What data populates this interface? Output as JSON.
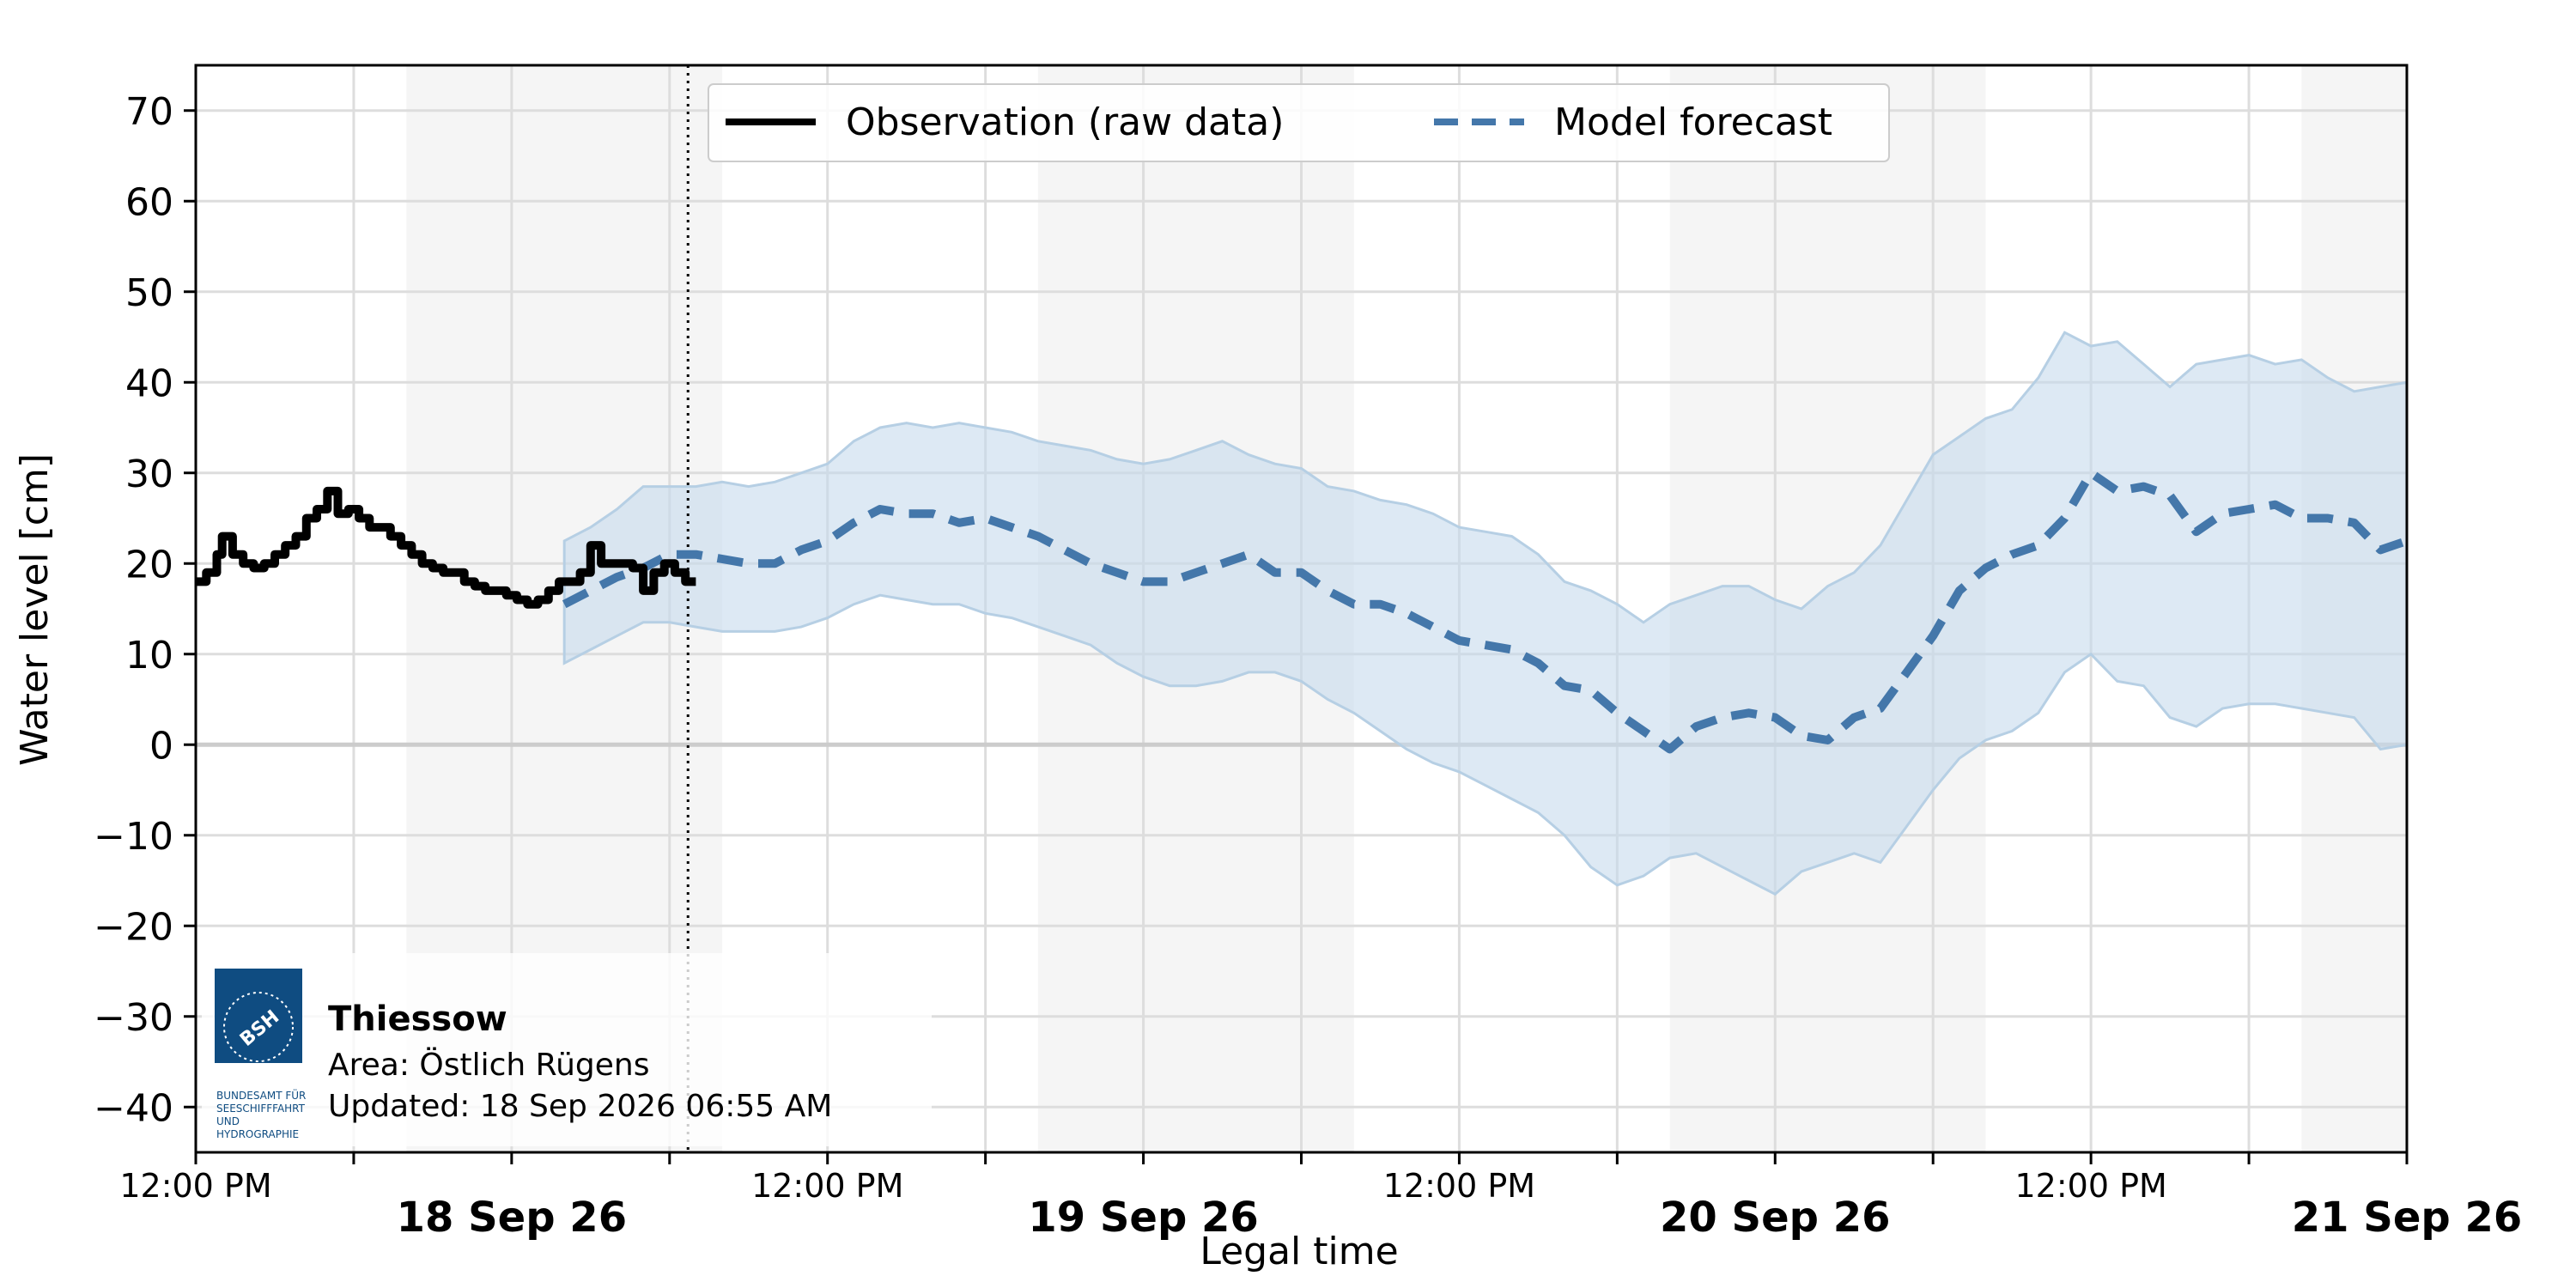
{
  "chart_data": {
    "type": "line",
    "title": "",
    "xlabel": "Legal time",
    "ylabel": "Water level [cm]",
    "x_unit": "hours after 17 Sep 26 12:00 PM",
    "xlim_hours": [
      0,
      84
    ],
    "ylim": [
      -45,
      75
    ],
    "y_ticks": [
      70,
      60,
      50,
      40,
      30,
      20,
      10,
      0,
      -10,
      -20,
      -30,
      -40
    ],
    "y_tick_labels": [
      "70",
      "60",
      "50",
      "40",
      "30",
      "20",
      "10",
      "0",
      "−10",
      "−20",
      "−30",
      "−40"
    ],
    "x_ticks": [
      {
        "hours": 0,
        "label": "12:00 PM",
        "bold": false
      },
      {
        "hours": 12,
        "label": "18 Sep 26",
        "bold": true
      },
      {
        "hours": 24,
        "label": "12:00 PM",
        "bold": false
      },
      {
        "hours": 36,
        "label": "19 Sep 26",
        "bold": true
      },
      {
        "hours": 48,
        "label": "12:00 PM",
        "bold": false
      },
      {
        "hours": 60,
        "label": "20 Sep 26",
        "bold": true
      },
      {
        "hours": 72,
        "label": "12:00 PM",
        "bold": false
      },
      {
        "hours": 84,
        "label": "21 Sep 26",
        "bold": true
      }
    ],
    "grid": true,
    "night_bands_hours": [
      [
        8,
        20
      ],
      [
        32,
        44
      ],
      [
        56,
        68
      ],
      [
        80,
        84
      ]
    ],
    "now_marker_hours": 18.7,
    "legend": {
      "placement": "top-center",
      "entries": [
        "Observation (raw data)",
        "Model forecast"
      ]
    },
    "series": [
      {
        "name": "Observation (raw data)",
        "style": "solid",
        "color": "#000000",
        "x": [
          0,
          0.4,
          0.8,
          1.0,
          1.4,
          1.8,
          2.2,
          2.6,
          3.0,
          3.4,
          3.8,
          4.2,
          4.6,
          5.0,
          5.4,
          5.8,
          6.2,
          6.6,
          7.0,
          7.4,
          7.8,
          8.2,
          8.6,
          9.0,
          9.4,
          9.8,
          10.2,
          10.6,
          11.0,
          11.4,
          11.8,
          12.2,
          12.6,
          13.0,
          13.4,
          13.8,
          14.2,
          14.6,
          15.0,
          15.4,
          15.8,
          16.2,
          16.6,
          17.0,
          17.4,
          17.8,
          18.2,
          18.6,
          19.0
        ],
        "y": [
          18,
          19,
          21,
          23,
          21,
          20,
          19.5,
          20,
          21,
          22,
          23,
          25,
          26,
          28,
          25.5,
          26,
          25,
          24,
          24,
          23,
          22,
          21,
          20,
          19.5,
          19,
          19,
          18,
          17.5,
          17,
          17,
          16.5,
          16,
          15.5,
          16,
          17,
          18,
          18,
          19,
          22,
          20,
          20,
          20,
          19.5,
          17,
          19,
          20,
          19,
          18,
          18
        ]
      },
      {
        "name": "Model forecast",
        "style": "dashed",
        "color": "#4477aa",
        "x": [
          14,
          15,
          16,
          17,
          18,
          19,
          20,
          21,
          22,
          23,
          24,
          25,
          26,
          27,
          28,
          29,
          30,
          31,
          32,
          33,
          34,
          35,
          36,
          37,
          38,
          39,
          40,
          41,
          42,
          43,
          44,
          45,
          46,
          47,
          48,
          49,
          50,
          51,
          52,
          53,
          54,
          55,
          56,
          57,
          58,
          59,
          60,
          61,
          62,
          63,
          64,
          65,
          66,
          67,
          68,
          69,
          70,
          71,
          72,
          73,
          74,
          75,
          76,
          77,
          78,
          79,
          80,
          81,
          82,
          83,
          84
        ],
        "y": [
          15.5,
          17,
          18.5,
          19.5,
          21,
          21,
          20.5,
          20,
          20,
          21.5,
          22.5,
          24.5,
          26,
          25.5,
          25.5,
          24.5,
          25,
          24,
          23,
          21.5,
          20,
          19,
          18,
          18,
          19,
          20,
          21,
          19,
          19,
          17,
          15.5,
          15.5,
          14.5,
          13,
          11.5,
          11,
          10.5,
          9,
          6.5,
          6,
          3.5,
          1.5,
          -0.5,
          2,
          3,
          3.5,
          3,
          1,
          0.5,
          3,
          4,
          8,
          12,
          17,
          19.5,
          21,
          22,
          25,
          30,
          28,
          28.5,
          27.5,
          23.5,
          25.5,
          26,
          26.5,
          25,
          25,
          24.5,
          21.5,
          22.5
        ]
      }
    ],
    "forecast_band": {
      "x": [
        14,
        15,
        16,
        17,
        18,
        19,
        20,
        21,
        22,
        23,
        24,
        25,
        26,
        27,
        28,
        29,
        30,
        31,
        32,
        33,
        34,
        35,
        36,
        37,
        38,
        39,
        40,
        41,
        42,
        43,
        44,
        45,
        46,
        47,
        48,
        49,
        50,
        51,
        52,
        53,
        54,
        55,
        56,
        57,
        58,
        59,
        60,
        61,
        62,
        63,
        64,
        65,
        66,
        67,
        68,
        69,
        70,
        71,
        72,
        73,
        74,
        75,
        76,
        77,
        78,
        79,
        80,
        81,
        82,
        83,
        84
      ],
      "upper": [
        22.5,
        24,
        26,
        28.5,
        28.5,
        28.5,
        29,
        28.5,
        29,
        30,
        31,
        33.5,
        35,
        35.5,
        35,
        35.5,
        35,
        34.5,
        33.5,
        33,
        32.5,
        31.5,
        31,
        31.5,
        32.5,
        33.5,
        32,
        31,
        30.5,
        28.5,
        28,
        27,
        26.5,
        25.5,
        24,
        23.5,
        23,
        21,
        18,
        17,
        15.5,
        13.5,
        15.5,
        16.5,
        17.5,
        17.5,
        16,
        15,
        17.5,
        19,
        22,
        27,
        32,
        34,
        36,
        37,
        40.5,
        45.5,
        44,
        44.5,
        42,
        39.5,
        42,
        42.5,
        43,
        42,
        42.5,
        40.5,
        39,
        39.5,
        40
      ],
      "lower": [
        9,
        10.5,
        12,
        13.5,
        13.5,
        13,
        12.5,
        12.5,
        12.5,
        13,
        14,
        15.5,
        16.5,
        16,
        15.5,
        15.5,
        14.5,
        14,
        13,
        12,
        11,
        9,
        7.5,
        6.5,
        6.5,
        7,
        8,
        8,
        7,
        5,
        3.5,
        1.5,
        -0.5,
        -2,
        -3,
        -4.5,
        -6,
        -7.5,
        -10,
        -13.5,
        -15.5,
        -14.5,
        -12.5,
        -12,
        -13.5,
        -15,
        -16.5,
        -14,
        -13,
        -12,
        -13,
        -9,
        -5,
        -1.5,
        0.5,
        1.5,
        3.5,
        8,
        10,
        7,
        6.5,
        3,
        2,
        4,
        4.5,
        4.5,
        4,
        3.5,
        3,
        -0.5,
        0
      ]
    },
    "colors": {
      "observation": "#000000",
      "forecast": "#4477aa",
      "band": "#c6dbed",
      "night_band": "#f5f5f5",
      "grid": "#dddddd"
    }
  },
  "info_box": {
    "station": "Thiessow",
    "area": "Area: Östlich Rügens",
    "updated": "Updated: 18 Sep 2026 06:55 AM",
    "logo_text": "BSH",
    "logo_caption": [
      "BUNDESAMT FÜR",
      "SEESCHIFFFAHRT",
      "UND",
      "HYDROGRAPHIE"
    ]
  }
}
